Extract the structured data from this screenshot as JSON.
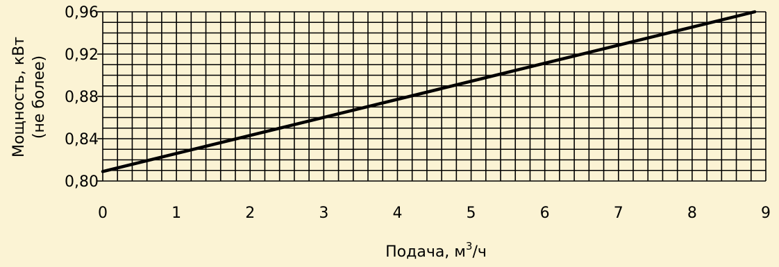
{
  "chart_data": {
    "type": "line",
    "xlabel": "Подача, м",
    "xlabel_sup": "3",
    "xlabel_tail": "/ч",
    "ylabel_line1": "Мощность, кВт",
    "ylabel_line2": "(не более)",
    "xlim": [
      0,
      9
    ],
    "ylim": [
      0.8,
      0.96
    ],
    "x_ticks": [
      0,
      1,
      2,
      3,
      4,
      5,
      6,
      7,
      8,
      9
    ],
    "x_tick_labels": [
      "0",
      "1",
      "2",
      "3",
      "4",
      "5",
      "6",
      "7",
      "8",
      "9"
    ],
    "y_ticks": [
      0.8,
      0.84,
      0.88,
      0.92,
      0.96
    ],
    "y_tick_labels": [
      "0,80",
      "0,84",
      "0,88",
      "0,92",
      "0,96"
    ],
    "grid": true,
    "grid_x_step": 0.2,
    "grid_y_step": 0.01,
    "series": [
      {
        "x": [
          0,
          8.85
        ],
        "y": [
          0.809,
          0.96
        ],
        "color": "#000000"
      }
    ],
    "background": "#fbf3d4"
  }
}
